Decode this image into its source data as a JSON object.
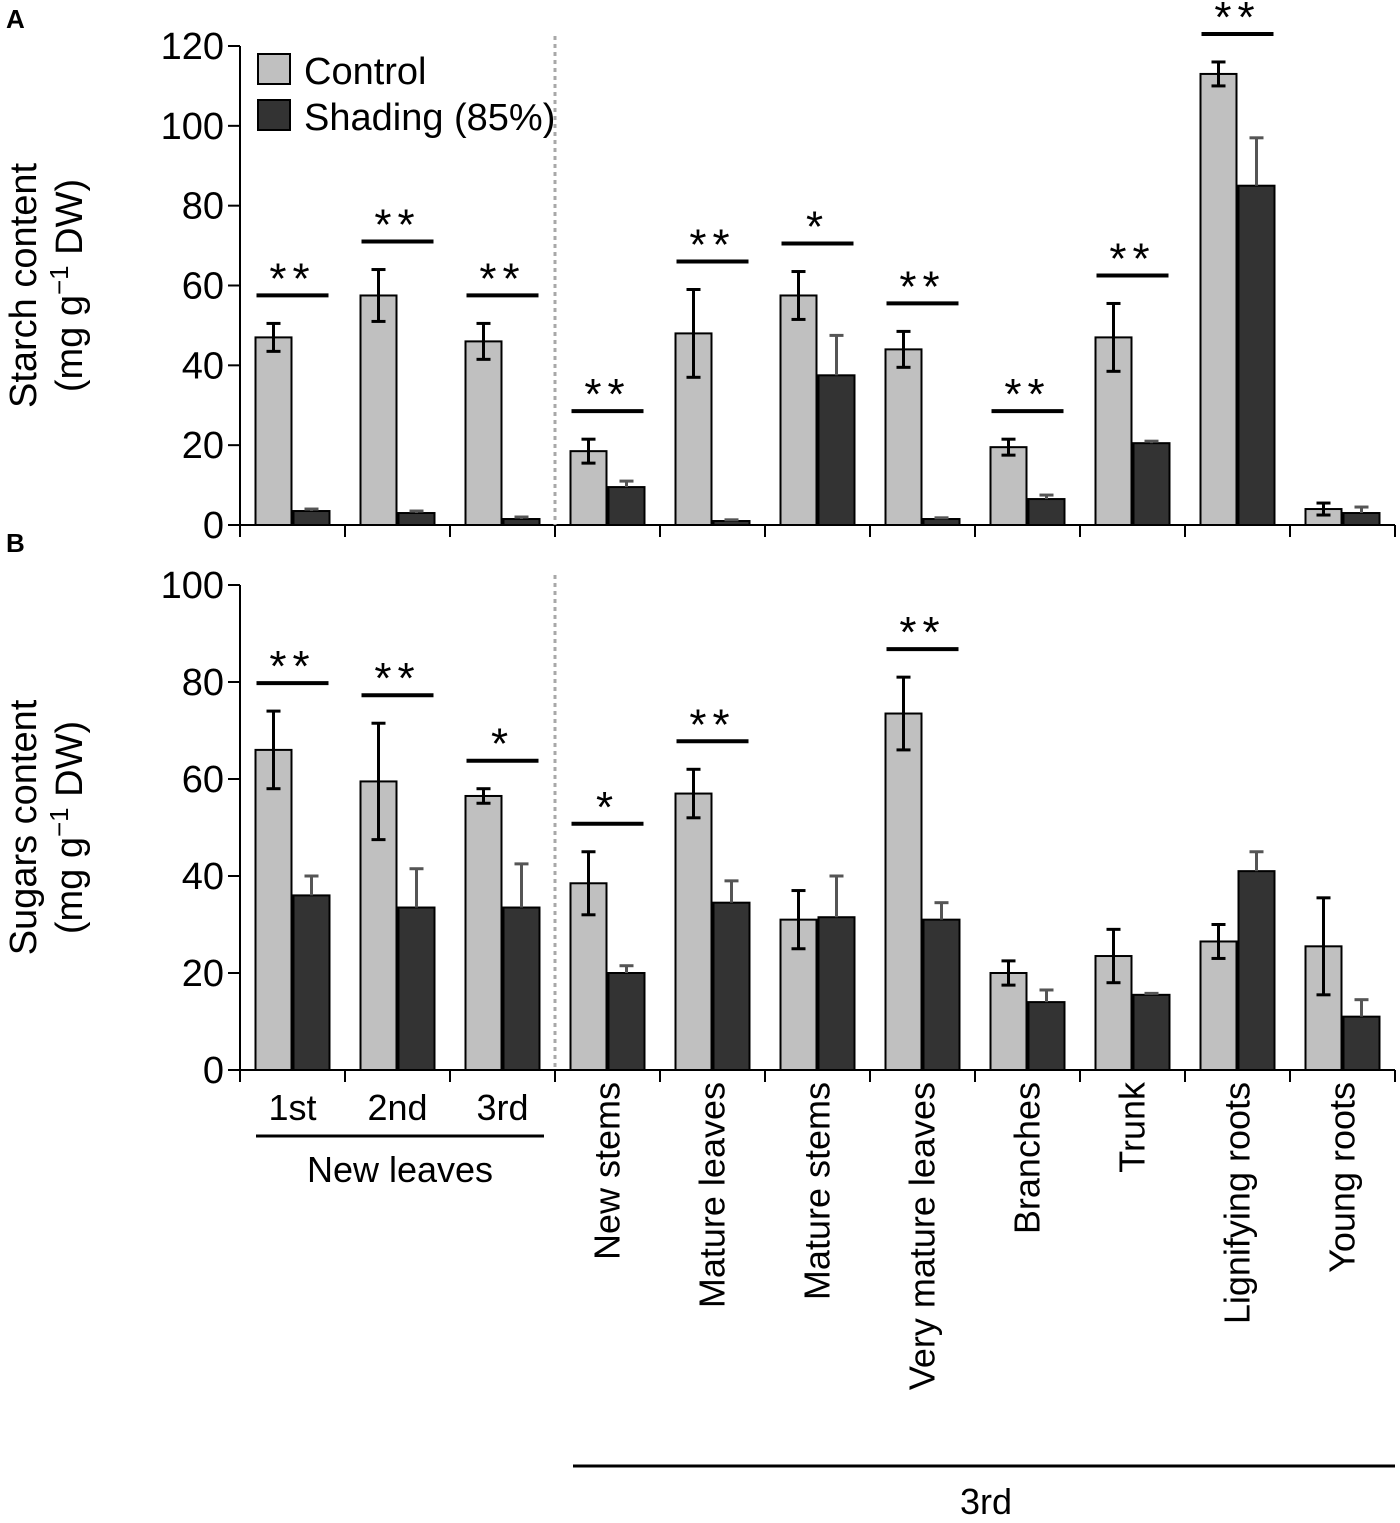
{
  "chart_data": [
    {
      "type": "bar",
      "panel": "A",
      "ylabel_line1": "Starch content",
      "ylabel_line2_pre": "(mg g",
      "ylabel_sup": "−1",
      "ylabel_line2_post": " DW)",
      "ylim": [
        0,
        120
      ],
      "yticks": [
        0,
        20,
        40,
        60,
        80,
        100,
        120
      ],
      "categories": [
        "1st",
        "2nd",
        "3rd",
        "New stems",
        "Mature leaves",
        "Mature stems",
        "Very mature leaves",
        "Branches",
        "Trunk",
        "Lignifying roots",
        "Young roots"
      ],
      "series": [
        {
          "name": "Control",
          "color": "#c0c0c0",
          "values": [
            47,
            57.5,
            46,
            18.5,
            48,
            57.5,
            44,
            19.5,
            47,
            113,
            4
          ],
          "errors": [
            3.5,
            6.5,
            4.5,
            3,
            11,
            6,
            4.5,
            2,
            8.5,
            3,
            1.5
          ]
        },
        {
          "name": "Shading (85%)",
          "color": "#333333",
          "values": [
            3.5,
            3,
            1.5,
            9.5,
            1,
            37.5,
            1.5,
            6.5,
            20.5,
            85,
            3
          ],
          "errors": [
            0.5,
            0.5,
            0.5,
            1.5,
            0.3,
            10,
            0.3,
            1,
            0.5,
            12,
            1.5
          ]
        }
      ],
      "significance": [
        "**",
        "**",
        "**",
        "**",
        "**",
        "*",
        "**",
        "**",
        "**",
        "**",
        ""
      ],
      "legend": [
        "Control",
        "Shading (85%)"
      ],
      "legend_position": "top-left"
    },
    {
      "type": "bar",
      "panel": "B",
      "ylabel_line1": "Sugars content",
      "ylabel_line2_pre": "(mg g",
      "ylabel_sup": "−1",
      "ylabel_line2_post": " DW)",
      "ylim": [
        0,
        100
      ],
      "yticks": [
        0,
        20,
        40,
        60,
        80,
        100
      ],
      "categories": [
        "1st",
        "2nd",
        "3rd",
        "New stems",
        "Mature leaves",
        "Mature stems",
        "Very mature leaves",
        "Branches",
        "Trunk",
        "Lignifying roots",
        "Young roots"
      ],
      "series": [
        {
          "name": "Control",
          "color": "#c0c0c0",
          "values": [
            66,
            59.5,
            56.5,
            38.5,
            57,
            31,
            73.5,
            20,
            23.5,
            26.5,
            25.5
          ],
          "errors": [
            8,
            12,
            1.5,
            6.5,
            5,
            6,
            7.5,
            2.5,
            5.5,
            3.5,
            10
          ]
        },
        {
          "name": "Shading (85%)",
          "color": "#333333",
          "values": [
            36,
            33.5,
            33.5,
            20,
            34.5,
            31.5,
            31,
            14,
            15.5,
            41,
            11
          ],
          "errors": [
            4,
            8,
            9,
            1.5,
            4.5,
            8.5,
            3.5,
            2.5,
            0.3,
            4,
            3.5
          ]
        }
      ],
      "significance": [
        "**",
        "**",
        "*",
        "*",
        "**",
        "",
        "**",
        "",
        "",
        "",
        ""
      ]
    }
  ],
  "group_labels": {
    "new_leaves": "New leaves",
    "third": "3rd"
  }
}
